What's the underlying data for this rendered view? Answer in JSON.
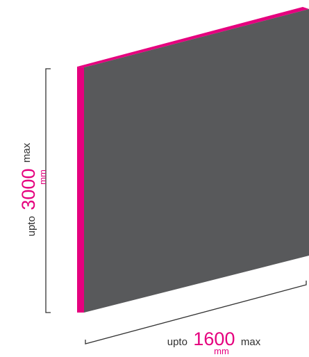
{
  "colors": {
    "panel_face": "#58595b",
    "panel_edge": "#e5007e",
    "accent": "#e5007e",
    "dimension_line": "#333333",
    "text": "#2f2f2f"
  },
  "height_dimension": {
    "prefix": "upto",
    "value": "3000",
    "suffix": "max",
    "unit": "mm"
  },
  "width_dimension": {
    "prefix": "upto",
    "value": "1600",
    "suffix": "max",
    "unit": "mm"
  }
}
